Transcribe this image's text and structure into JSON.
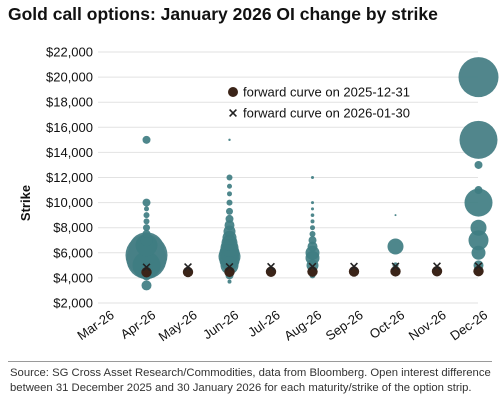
{
  "colors": {
    "bubble": "#3f7d82",
    "bubble_large": "#487f86",
    "forward_dot": "#3b2418",
    "forward_cross": "#222222",
    "grid": "#e2e2e2"
  },
  "chart_data": {
    "type": "scatter",
    "title": "Gold call options: January 2026 OI change by strike",
    "ylabel": "Strike",
    "xlabel": "",
    "ylim": [
      2000,
      22000
    ],
    "yticks": [
      2000,
      4000,
      6000,
      8000,
      10000,
      12000,
      14000,
      16000,
      18000,
      20000,
      22000
    ],
    "ytick_labels": [
      "$2,000",
      "$4,000",
      "$6,000",
      "$8,000",
      "$10,000",
      "$12,000",
      "$14,000",
      "$16,000",
      "$18,000",
      "$20,000",
      "$22,000"
    ],
    "categories": [
      "Mar-26",
      "Apr-26",
      "May-26",
      "Jun-26",
      "Jul-26",
      "Aug-26",
      "Sep-26",
      "Oct-26",
      "Nov-26",
      "Dec-26"
    ],
    "grid": "horizontal",
    "legend": {
      "position": "top-right",
      "entries": [
        {
          "marker": "dot",
          "label": "forward curve on 2025-12-31"
        },
        {
          "marker": "cross",
          "label": "forward curve on 2026-01-30"
        }
      ]
    },
    "forward_2025_12_31": [
      {
        "x": "Apr-26",
        "y": 4450
      },
      {
        "x": "May-26",
        "y": 4470
      },
      {
        "x": "Jun-26",
        "y": 4480
      },
      {
        "x": "Jul-26",
        "y": 4490
      },
      {
        "x": "Aug-26",
        "y": 4500
      },
      {
        "x": "Sep-26",
        "y": 4510
      },
      {
        "x": "Oct-26",
        "y": 4520
      },
      {
        "x": "Nov-26",
        "y": 4530
      },
      {
        "x": "Dec-26",
        "y": 4540
      }
    ],
    "forward_2026_01_30": [
      {
        "x": "Apr-26",
        "y": 4850
      },
      {
        "x": "May-26",
        "y": 4870
      },
      {
        "x": "Jun-26",
        "y": 4880
      },
      {
        "x": "Jul-26",
        "y": 4890
      },
      {
        "x": "Aug-26",
        "y": 4900
      },
      {
        "x": "Sep-26",
        "y": 4910
      },
      {
        "x": "Oct-26",
        "y": 4920
      },
      {
        "x": "Nov-26",
        "y": 4930
      },
      {
        "x": "Dec-26",
        "y": 4940
      }
    ],
    "oi_change_bubbles": [
      {
        "x": "Apr-26",
        "y": 3400,
        "size": 5
      },
      {
        "x": "Apr-26",
        "y": 4200,
        "size": 5
      },
      {
        "x": "Apr-26",
        "y": 5000,
        "size": 14
      },
      {
        "x": "Apr-26",
        "y": 5500,
        "size": 20
      },
      {
        "x": "Apr-26",
        "y": 5800,
        "size": 21
      },
      {
        "x": "Apr-26",
        "y": 6200,
        "size": 18
      },
      {
        "x": "Apr-26",
        "y": 6600,
        "size": 11
      },
      {
        "x": "Apr-26",
        "y": 7000,
        "size": 6
      },
      {
        "x": "Apr-26",
        "y": 7500,
        "size": 4
      },
      {
        "x": "Apr-26",
        "y": 8000,
        "size": 3.5
      },
      {
        "x": "Apr-26",
        "y": 8500,
        "size": 3
      },
      {
        "x": "Apr-26",
        "y": 9000,
        "size": 3
      },
      {
        "x": "Apr-26",
        "y": 9500,
        "size": 2.5
      },
      {
        "x": "Apr-26",
        "y": 10000,
        "size": 4
      },
      {
        "x": "Apr-26",
        "y": 15000,
        "size": 4
      },
      {
        "x": "Jun-26",
        "y": 3700,
        "size": 2
      },
      {
        "x": "Jun-26",
        "y": 4200,
        "size": 4
      },
      {
        "x": "Jun-26",
        "y": 5000,
        "size": 9
      },
      {
        "x": "Jun-26",
        "y": 5400,
        "size": 10
      },
      {
        "x": "Jun-26",
        "y": 5700,
        "size": 11
      },
      {
        "x": "Jun-26",
        "y": 6000,
        "size": 10
      },
      {
        "x": "Jun-26",
        "y": 6400,
        "size": 9
      },
      {
        "x": "Jun-26",
        "y": 6800,
        "size": 8
      },
      {
        "x": "Jun-26",
        "y": 7200,
        "size": 7
      },
      {
        "x": "Jun-26",
        "y": 7700,
        "size": 6
      },
      {
        "x": "Jun-26",
        "y": 8200,
        "size": 5
      },
      {
        "x": "Jun-26",
        "y": 8700,
        "size": 4
      },
      {
        "x": "Jun-26",
        "y": 9300,
        "size": 3.5
      },
      {
        "x": "Jun-26",
        "y": 10000,
        "size": 3
      },
      {
        "x": "Jun-26",
        "y": 10700,
        "size": 2.5
      },
      {
        "x": "Jun-26",
        "y": 11300,
        "size": 2.5
      },
      {
        "x": "Jun-26",
        "y": 12000,
        "size": 3
      },
      {
        "x": "Jun-26",
        "y": 15000,
        "size": 1.2
      },
      {
        "x": "Aug-26",
        "y": 4200,
        "size": 3
      },
      {
        "x": "Aug-26",
        "y": 5000,
        "size": 6
      },
      {
        "x": "Aug-26",
        "y": 5600,
        "size": 7
      },
      {
        "x": "Aug-26",
        "y": 6000,
        "size": 7
      },
      {
        "x": "Aug-26",
        "y": 6500,
        "size": 5
      },
      {
        "x": "Aug-26",
        "y": 7000,
        "size": 4
      },
      {
        "x": "Aug-26",
        "y": 7500,
        "size": 3
      },
      {
        "x": "Aug-26",
        "y": 8000,
        "size": 2.5
      },
      {
        "x": "Aug-26",
        "y": 8500,
        "size": 2
      },
      {
        "x": "Aug-26",
        "y": 9000,
        "size": 1.8
      },
      {
        "x": "Aug-26",
        "y": 9500,
        "size": 1.5
      },
      {
        "x": "Aug-26",
        "y": 10000,
        "size": 1.5
      },
      {
        "x": "Aug-26",
        "y": 12000,
        "size": 1.5
      },
      {
        "x": "Oct-26",
        "y": 5000,
        "size": 3
      },
      {
        "x": "Oct-26",
        "y": 6500,
        "size": 8
      },
      {
        "x": "Oct-26",
        "y": 9000,
        "size": 1
      },
      {
        "x": "Dec-26",
        "y": 5000,
        "size": 5
      },
      {
        "x": "Dec-26",
        "y": 6000,
        "size": 7
      },
      {
        "x": "Dec-26",
        "y": 7000,
        "size": 10
      },
      {
        "x": "Dec-26",
        "y": 8000,
        "size": 8
      },
      {
        "x": "Dec-26",
        "y": 10000,
        "size": 14
      },
      {
        "x": "Dec-26",
        "y": 11000,
        "size": 4
      },
      {
        "x": "Dec-26",
        "y": 13000,
        "size": 4
      },
      {
        "x": "Dec-26",
        "y": 15000,
        "size": 19
      },
      {
        "x": "Dec-26",
        "y": 20000,
        "size": 20
      }
    ]
  },
  "footer": {
    "source": "Source: SG Cross Asset Research/Commodities, data from Bloomberg. Open interest difference between 31 December 2025 and 30 January 2026 for each maturity/strike of the option strip."
  }
}
